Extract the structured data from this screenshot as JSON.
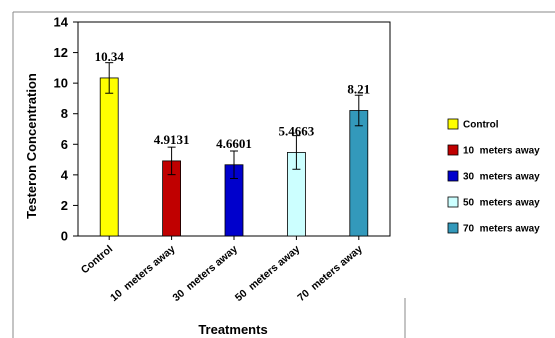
{
  "chart_data": {
    "type": "bar",
    "categories": [
      "Control",
      "10  meters away",
      "30  meters away",
      "50  meters away",
      "70  meters away"
    ],
    "values": [
      10.34,
      4.9131,
      4.6601,
      5.4663,
      8.21
    ],
    "value_labels": [
      "10.34",
      "4.9131",
      "4.6601",
      "5.4663",
      "8.21"
    ],
    "error": [
      1.0,
      0.9,
      0.9,
      1.1,
      1.0
    ],
    "colors": [
      "#ffff00",
      "#c00000",
      "#0000cc",
      "#ccffff",
      "#3399bb"
    ],
    "xlabel": "Treatments",
    "ylabel": "Testeron Concentration",
    "ylim": [
      0,
      14
    ],
    "yticks": [
      "0",
      "2",
      "4",
      "6",
      "8",
      "10",
      "12",
      "14"
    ],
    "legend": [
      "Control",
      "10  meters away",
      "30  meters away",
      "50  meters away",
      "70  meters away"
    ],
    "legend_position": "right",
    "grid": false
  }
}
